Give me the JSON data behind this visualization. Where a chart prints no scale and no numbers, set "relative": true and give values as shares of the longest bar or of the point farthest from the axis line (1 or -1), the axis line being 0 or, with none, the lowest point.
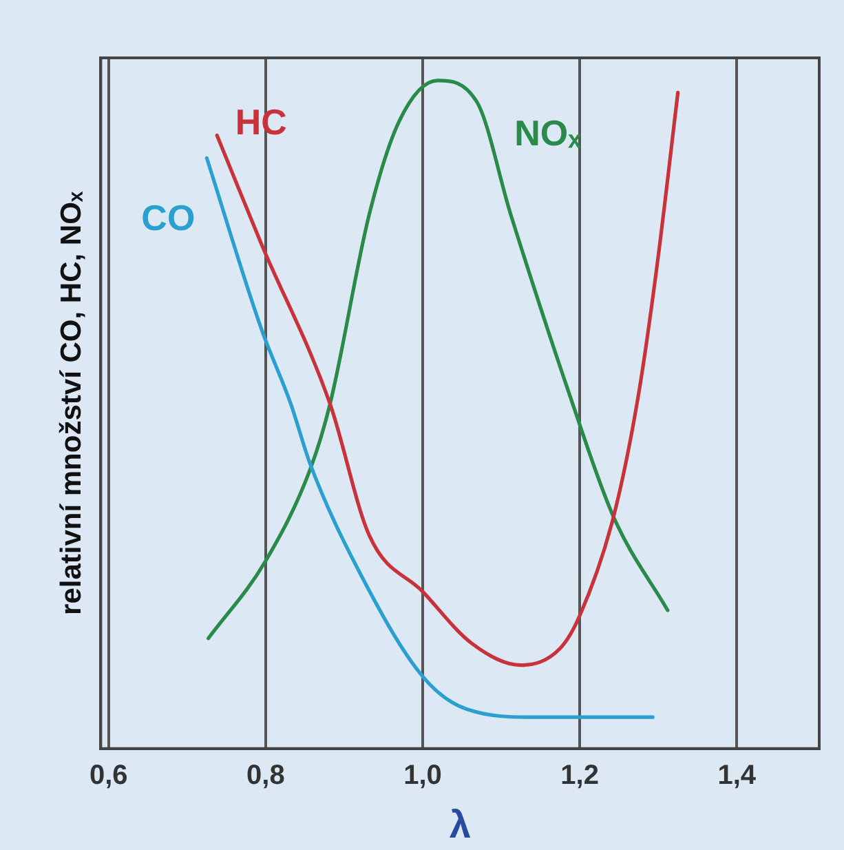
{
  "chart_data": {
    "type": "line",
    "relative": true,
    "xlabel": "λ",
    "ylabel": "relativní množství CO, HC, NOₓ",
    "xlim": [
      0.59,
      1.505
    ],
    "xticks": [
      {
        "value": 0.6,
        "label": "0,6"
      },
      {
        "value": 0.8,
        "label": "0,8"
      },
      {
        "value": 1.0,
        "label": "1,0"
      },
      {
        "value": 1.2,
        "label": "1,2"
      },
      {
        "value": 1.4,
        "label": "1,4"
      }
    ],
    "grid": "x",
    "legend": false,
    "marker": "none",
    "line_style": "solid",
    "series": [
      {
        "name": "CO",
        "color": "#2a9fd0",
        "x": [
          0.725,
          0.794,
          0.832,
          0.857,
          0.92,
          1.0,
          1.056,
          1.144,
          1.293
        ],
        "values": [
          0.884,
          0.63,
          0.516,
          0.425,
          0.263,
          0.108,
          0.059,
          0.047,
          0.047
        ]
      },
      {
        "name": "HC",
        "color": "#c8323a",
        "x": [
          0.738,
          0.794,
          0.882,
          0.932,
          1.0,
          1.063,
          1.125,
          1.175,
          1.2,
          1.243,
          1.275,
          1.299,
          1.325
        ],
        "values": [
          0.918,
          0.757,
          0.516,
          0.319,
          0.235,
          0.157,
          0.125,
          0.15,
          0.199,
          0.347,
          0.531,
          0.728,
          0.982
        ]
      },
      {
        "name": "NOₓ",
        "color": "#2a8a4a",
        "x": [
          0.727,
          0.8,
          0.857,
          0.882,
          0.932,
          0.97,
          1.019,
          1.069,
          1.112,
          1.187,
          1.243,
          1.312
        ],
        "values": [
          0.165,
          0.281,
          0.419,
          0.516,
          0.8,
          0.939,
          1,
          0.968,
          0.8,
          0.53,
          0.347,
          0.207
        ]
      }
    ]
  }
}
